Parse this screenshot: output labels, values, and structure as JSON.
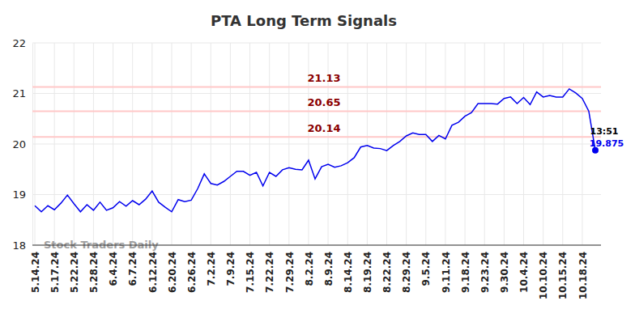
{
  "chart_data": {
    "type": "line",
    "title": "PTA Long Term Signals",
    "watermark": "Stock Traders Daily",
    "categories": [
      "5.14.24",
      null,
      null,
      "5.17.24",
      null,
      null,
      "5.22.24",
      null,
      null,
      "5.28.24",
      null,
      null,
      "6.4.24",
      null,
      null,
      "6.7.24",
      null,
      null,
      "6.12.24",
      null,
      null,
      "6.20.24",
      null,
      null,
      "6.26.24",
      null,
      null,
      "7.2.24",
      null,
      null,
      "7.9.24",
      null,
      null,
      "7.15.24",
      null,
      null,
      "7.22.24",
      null,
      null,
      "7.29.24",
      null,
      null,
      "8.2.24",
      null,
      null,
      "8.9.24",
      null,
      null,
      "8.14.24",
      null,
      null,
      "8.19.24",
      null,
      null,
      "8.22.24",
      null,
      null,
      "8.29.24",
      null,
      null,
      "9.5.24",
      null,
      null,
      "9.11.24",
      null,
      null,
      "9.18.24",
      null,
      null,
      "9.23.24",
      null,
      null,
      "9.30.24",
      null,
      null,
      "10.4.24",
      null,
      null,
      "10.10.24",
      null,
      null,
      "10.15.24",
      null,
      null,
      "10.18.24",
      null,
      null
    ],
    "values": [
      18.78,
      18.66,
      18.78,
      18.7,
      18.83,
      18.99,
      18.82,
      18.66,
      18.8,
      18.69,
      18.85,
      18.69,
      18.74,
      18.86,
      18.77,
      18.88,
      18.8,
      18.91,
      19.07,
      18.85,
      18.75,
      18.66,
      18.9,
      18.86,
      18.89,
      19.12,
      19.41,
      19.22,
      19.19,
      19.26,
      19.36,
      19.46,
      19.46,
      19.38,
      19.44,
      19.17,
      19.44,
      19.36,
      19.49,
      19.53,
      19.5,
      19.49,
      19.68,
      19.31,
      19.55,
      19.6,
      19.54,
      19.57,
      19.63,
      19.73,
      19.94,
      19.97,
      19.92,
      19.91,
      19.87,
      19.97,
      20.05,
      20.16,
      20.22,
      20.19,
      20.19,
      20.05,
      20.17,
      20.1,
      20.37,
      20.43,
      20.55,
      20.62,
      20.8,
      20.8,
      20.8,
      20.79,
      20.9,
      20.93,
      20.8,
      20.92,
      20.78,
      21.03,
      20.93,
      20.96,
      20.93,
      20.93,
      21.09,
      21.01,
      20.9,
      20.65,
      19.875
    ],
    "color": "#0000ee",
    "signal_levels": [
      21.13,
      20.65,
      20.14
    ],
    "last_time": "13:51",
    "ylim": [
      18,
      22
    ],
    "yticks": [
      18,
      19,
      20,
      21,
      22
    ],
    "grid": true
  }
}
